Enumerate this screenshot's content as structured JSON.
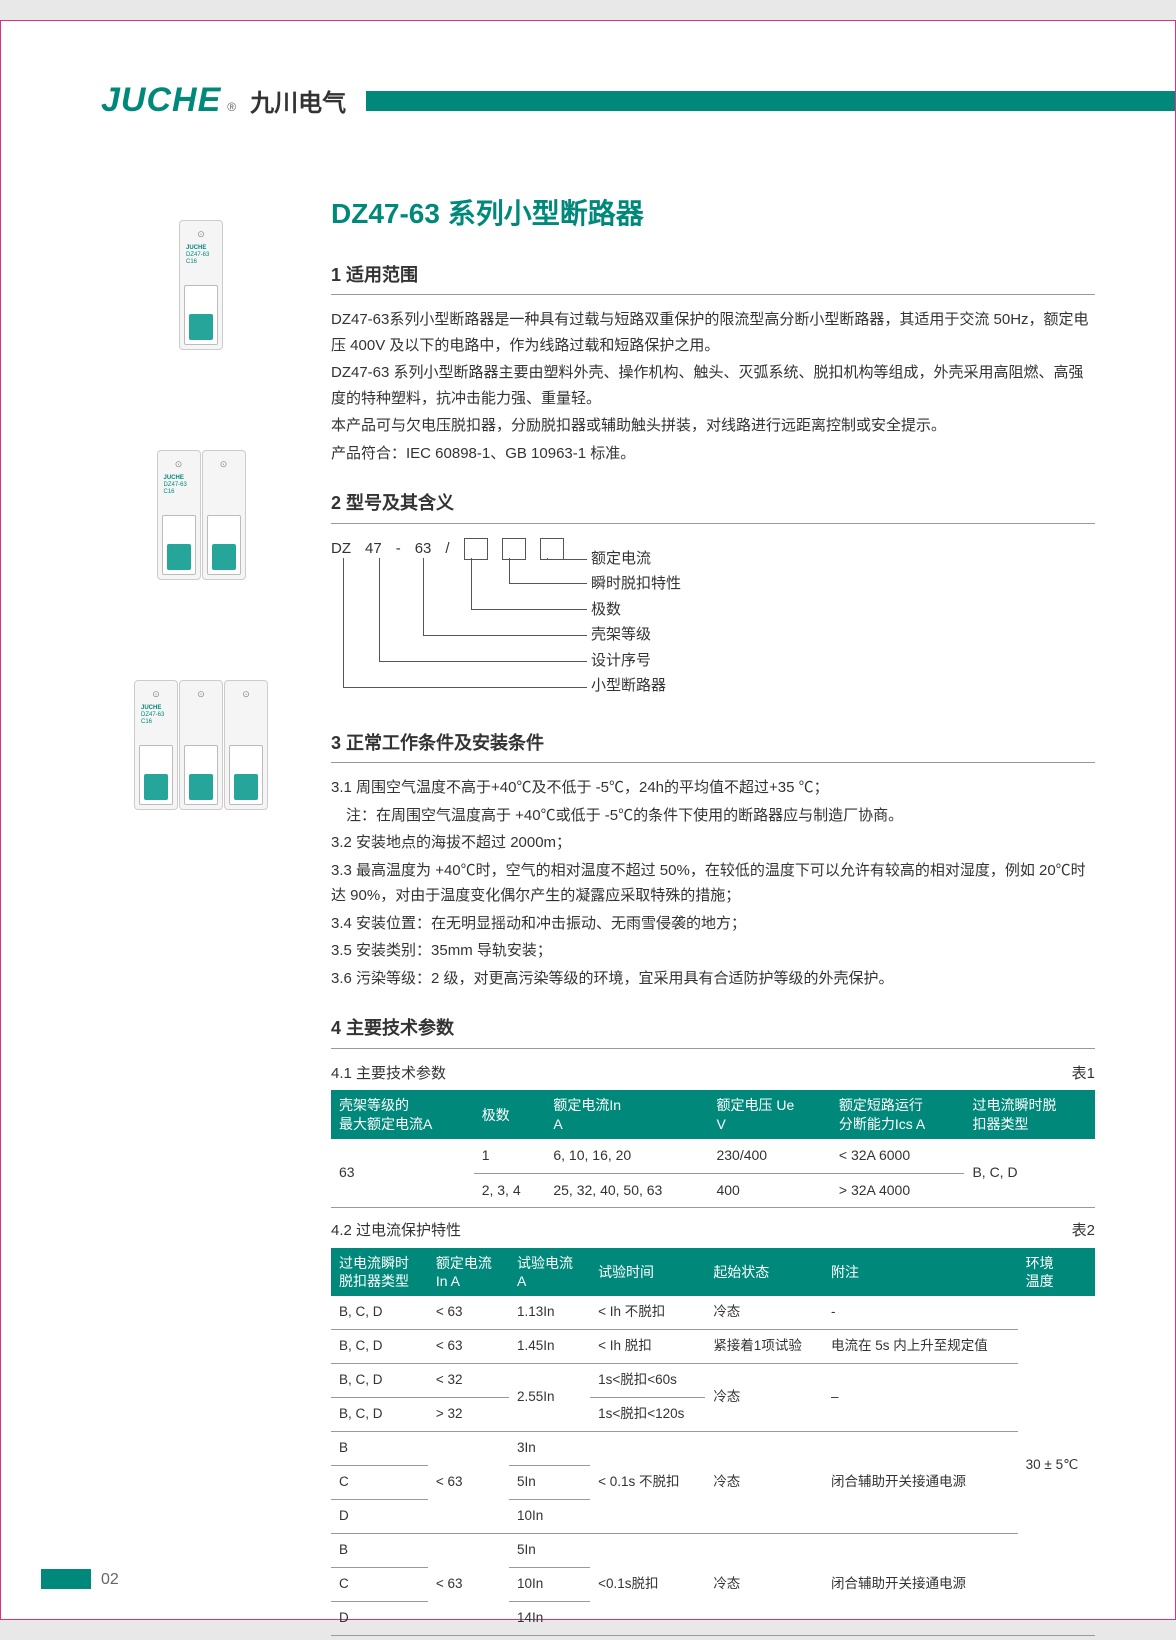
{
  "header": {
    "logo_en": "JUCHE",
    "logo_reg": "®",
    "logo_cn": "九川电气"
  },
  "title": "DZ47-63 系列小型断路器",
  "sections": {
    "s1_head": "1 适用范围",
    "s1_p1": "DZ47-63系列小型断路器是一种具有过载与短路双重保护的限流型高分断小型断路器，其适用于交流 50Hz，额定电压 400V 及以下的电路中，作为线路过载和短路保护之用。",
    "s1_p2": "DZ47-63 系列小型断路器主要由塑料外壳、操作机构、触头、灭弧系统、脱扣机构等组成，外壳采用高阻燃、高强度的特种塑料，抗冲击能力强、重量轻。",
    "s1_p3": "本产品可与欠电压脱扣器，分励脱扣器或辅助触头拼装，对线路进行远距离控制或安全提示。",
    "s1_p4": "产品符合：IEC 60898-1、GB 10963-1 标准。",
    "s2_head": "2 型号及其含义",
    "model_parts": [
      "DZ",
      "47",
      "-",
      "63",
      "/"
    ],
    "model_labels": [
      "额定电流",
      "瞬时脱扣特性",
      "极数",
      "壳架等级",
      "设计序号",
      "小型断路器"
    ],
    "s3_head": "3 正常工作条件及安装条件",
    "s3_items": [
      "3.1 周围空气温度不高于+40℃及不低于 -5℃，24h的平均值不超过+35 ℃；",
      "　注：在周围空气温度高于 +40℃或低于 -5℃的条件下使用的断路器应与制造厂协商。",
      "3.2 安装地点的海拔不超过 2000m；",
      "3.3 最高温度为 +40℃时，空气的相对温度不超过 50%，在较低的温度下可以允许有较高的相对湿度，例如 20℃时达 90%，对由于温度变化偶尔产生的凝露应采取特殊的措施；",
      "3.4 安装位置：在无明显摇动和冲击振动、无雨雪侵袭的地方；",
      "3.5 安装类别：35mm 导轨安装；",
      "3.6 污染等级：2 级，对更高污染等级的环境，宜采用具有合适防护等级的外壳保护。"
    ],
    "s4_head": "4 主要技术参数",
    "s4_1_label": "4.1 主要技术参数",
    "s4_1_table_tag": "表1",
    "s4_2_label": "4.2 过电流保护特性",
    "s4_2_table_tag": "表2"
  },
  "table1": {
    "headers": [
      "壳架等级的\n最大额定电流A",
      "极数",
      "额定电流In\nA",
      "额定电压 Ue\nV",
      "额定短路运行\n分断能力Ics A",
      "过电流瞬时脱\n扣器类型"
    ],
    "rows": [
      {
        "c0": "63",
        "c0_rowspan": 2,
        "c1": "1",
        "c2": "6, 10, 16, 20",
        "c3": "230/400",
        "c4": "< 32A 6000",
        "c5": "B, C, D",
        "c5_rowspan": 2
      },
      {
        "c1": "2, 3, 4",
        "c2": "25, 32, 40, 50, 63",
        "c3": "400",
        "c4": "> 32A 4000"
      }
    ]
  },
  "table2": {
    "headers": [
      "过电流瞬时\n脱扣器类型",
      "额定电流\nIn A",
      "试验电流\nA",
      "试验时间",
      "起始状态",
      "附注",
      "环境\n温度"
    ],
    "rows": [
      [
        "B, C, D",
        "< 63",
        "1.13In",
        "< Ih 不脱扣",
        "冷态",
        "-"
      ],
      [
        "B, C, D",
        "< 63",
        "1.45In",
        "< Ih 脱扣",
        "紧接着1项试验",
        "电流在 5s 内上升至规定值"
      ],
      [
        "B, C, D",
        "< 32",
        "2.55In",
        "1s<脱扣<60s",
        "冷态",
        "–"
      ],
      [
        "B, C, D",
        "> 32",
        "",
        "1s<脱扣<120s",
        "",
        ""
      ],
      [
        "B",
        "< 63",
        "3In",
        "< 0.1s 不脱扣",
        "冷态",
        "闭合辅助开关接通电源"
      ],
      [
        "C",
        "",
        "5In",
        "",
        "",
        ""
      ],
      [
        "D",
        "",
        "10In",
        "",
        "",
        ""
      ],
      [
        "B",
        "< 63",
        "5In",
        "<0.1s脱扣",
        "冷态",
        "闭合辅助开关接通电源"
      ],
      [
        "C",
        "",
        "10In",
        "",
        "",
        ""
      ],
      [
        "D",
        "",
        "14In",
        "",
        "",
        ""
      ]
    ],
    "env_temp": "30 ± 5℃"
  },
  "breaker_label": {
    "brand": "JUCHE",
    "model": "DZ47-63",
    "sub": "C16"
  },
  "page_number": "02"
}
